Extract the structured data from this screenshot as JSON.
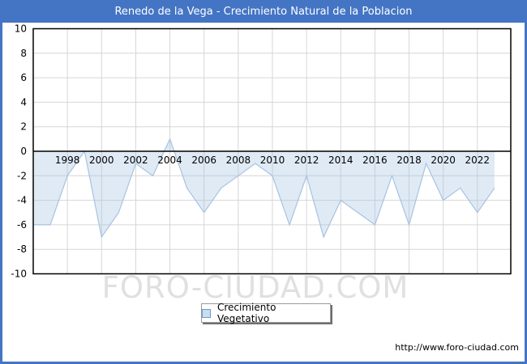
{
  "window": {
    "title": "Renedo de la Vega - Crecimiento Natural de la Poblacion"
  },
  "chart_data": {
    "type": "area",
    "title": "Renedo de la Vega - Crecimiento Natural de la Poblacion",
    "xlabel": "",
    "ylabel": "",
    "x": [
      1996,
      1997,
      1998,
      1999,
      2000,
      2001,
      2002,
      2003,
      2004,
      2005,
      2006,
      2007,
      2008,
      2009,
      2010,
      2011,
      2012,
      2013,
      2014,
      2015,
      2016,
      2017,
      2018,
      2019,
      2020,
      2021,
      2022,
      2023
    ],
    "series": [
      {
        "name": "Crecimiento Vegetativo",
        "values": [
          -6,
          -6,
          -2,
          0,
          -7,
          -5,
          -1,
          -2,
          1,
          -3,
          -5,
          -3,
          -2,
          -1,
          -2,
          -6,
          -2,
          -7,
          -4,
          -5,
          -6,
          -2,
          -6,
          -1,
          -4,
          -3,
          -5,
          -3
        ]
      }
    ],
    "ylim": [
      -10,
      10
    ],
    "yticks": [
      -10,
      -8,
      -6,
      -4,
      -2,
      0,
      2,
      4,
      6,
      8,
      10
    ],
    "xticks": [
      1998,
      2000,
      2002,
      2004,
      2006,
      2008,
      2010,
      2012,
      2014,
      2016,
      2018,
      2020,
      2022
    ],
    "grid": true,
    "legend_position": "bottom"
  },
  "legend": {
    "label": "Crecimiento Vegetativo"
  },
  "watermark": {
    "text": "FORO-CIUDAD.COM"
  },
  "footer": {
    "url": "http://www.foro-ciudad.com"
  },
  "colors": {
    "titlebar_bg": "#4475c4",
    "title_text": "#ffffff",
    "plot_border": "#000000",
    "zero_axis": "#000000",
    "grid_line": "#d6d6d6",
    "series_line": "#a6c3e2",
    "series_fill": "rgba(166,195,226,0.35)",
    "tick_text": "#000000",
    "watermark_text": "#e0e0e0"
  }
}
